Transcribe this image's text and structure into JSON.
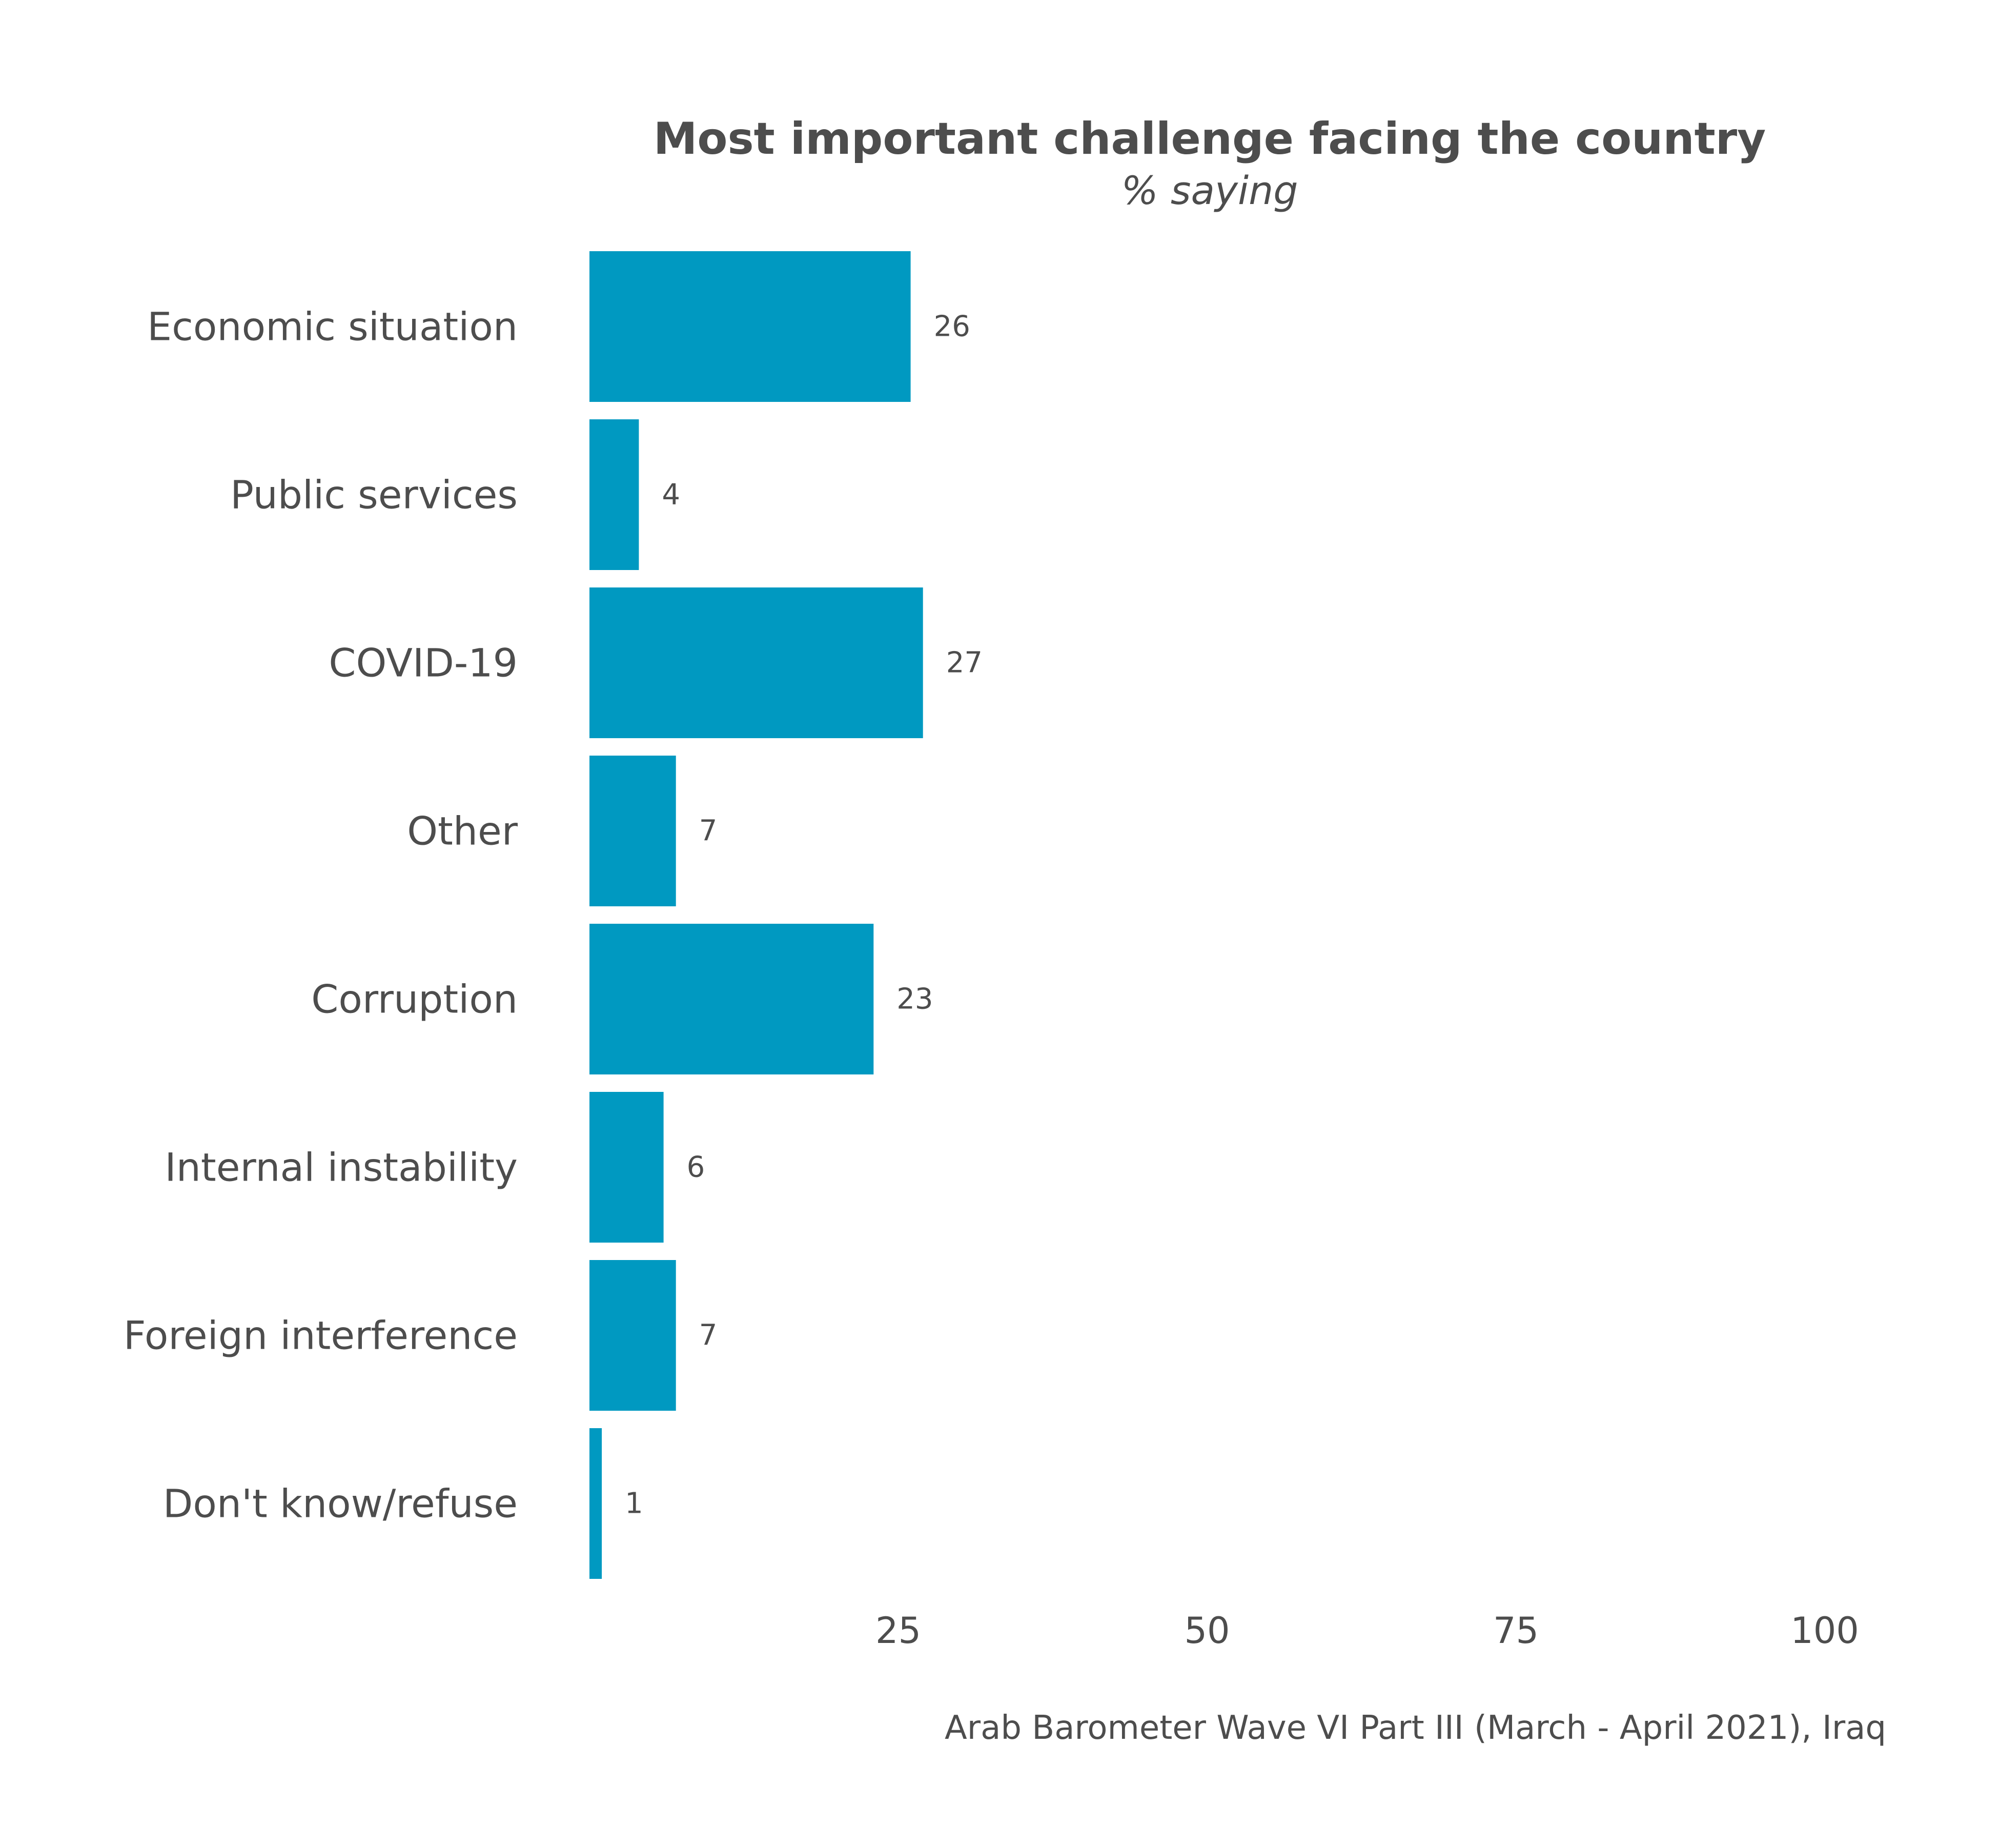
{
  "chart_data": {
    "type": "bar",
    "orientation": "horizontal",
    "title": "Most important challenge facing the country",
    "subtitle": "% saying",
    "caption": "Arab Barometer Wave VI Part III (March - April 2021), Iraq",
    "categories": [
      "Economic situation",
      "Public services",
      "COVID-19",
      "Other",
      "Corruption",
      "Internal instability",
      "Foreign interference",
      "Don't know/refuse"
    ],
    "values": [
      26,
      4,
      27,
      7,
      23,
      6,
      7,
      1
    ],
    "value_labels": [
      "26",
      "4",
      "27",
      "7",
      "23",
      "6",
      "7",
      "1"
    ],
    "xlim": [
      0,
      100
    ],
    "xticks": [
      25,
      50,
      75,
      100
    ],
    "xtick_labels": [
      "25",
      "50",
      "75",
      "100"
    ],
    "grid": false,
    "legend": "none",
    "bar_color": "#0099c1"
  }
}
